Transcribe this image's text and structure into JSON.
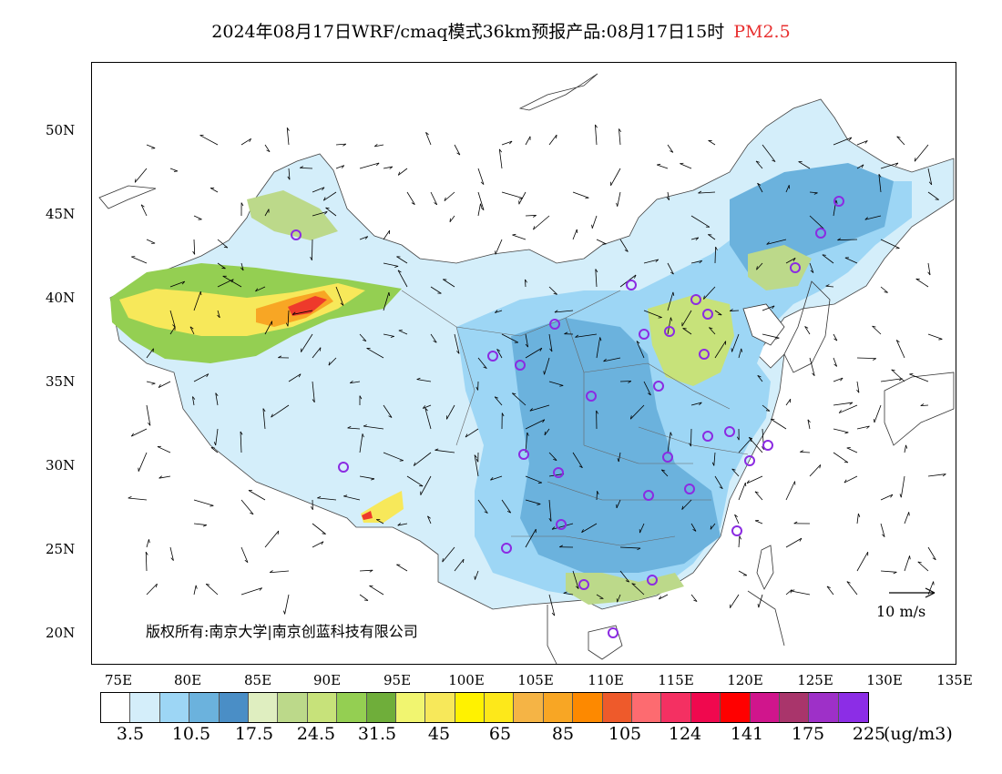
{
  "title": {
    "main": "2024年08月17日WRF/cmaq模式36km预报产品:08月17日15时",
    "pollutant": "PM2.5"
  },
  "axes": {
    "lat_ticks": [
      "50N",
      "45N",
      "40N",
      "35N",
      "30N",
      "25N",
      "20N"
    ],
    "lon_ticks": [
      "75E",
      "80E",
      "85E",
      "90E",
      "95E",
      "100E",
      "105E",
      "110E",
      "115E",
      "120E",
      "125E",
      "130E",
      "135E"
    ]
  },
  "copyright": "版权所有:南京大学|南京创蓝科技有限公司",
  "wind_scale": "10 m/s",
  "colorbar": {
    "colors": [
      "#ffffff",
      "#d4eefa",
      "#9dd6f5",
      "#6bb2dd",
      "#4a8ec6",
      "#dfeec0",
      "#bcd98a",
      "#c7e27a",
      "#94cf52",
      "#6fae3a",
      "#f1f570",
      "#f7e85a",
      "#fff200",
      "#fde81a",
      "#f5b445",
      "#f8a624",
      "#fd8900",
      "#ee5a2b",
      "#fd6b70",
      "#f43062",
      "#f0084e",
      "#ff0000",
      "#d0158c",
      "#a9356b",
      "#9e30c8",
      "#8c2de6"
    ],
    "labels": [
      "3.5",
      "10.5",
      "17.5",
      "24.5",
      "31.5",
      "45",
      "65",
      "85",
      "105",
      "124",
      "141",
      "175",
      "225"
    ],
    "units": "(ug/m3)"
  }
}
